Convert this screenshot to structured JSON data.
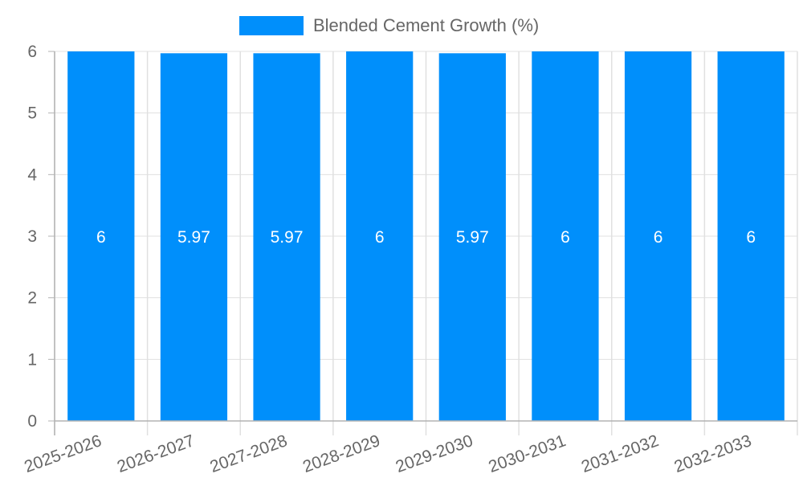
{
  "chart_data": {
    "type": "bar",
    "title": "",
    "categories": [
      "2025-2026",
      "2026-2027",
      "2027-2028",
      "2028-2029",
      "2029-2030",
      "2030-2031",
      "2031-2032",
      "2032-2033"
    ],
    "series": [
      {
        "name": "Blended Cement Growth (%)",
        "values": [
          6,
          5.97,
          5.97,
          6,
          5.97,
          6,
          6,
          6
        ],
        "color": "#008ffb"
      }
    ],
    "data_labels": [
      "6",
      "5.97",
      "5.97",
      "6",
      "5.97",
      "6",
      "6",
      "6"
    ],
    "xlabel": "",
    "ylabel": "",
    "ylim": [
      0,
      6
    ],
    "yticks": [
      0,
      1,
      2,
      3,
      4,
      5,
      6
    ],
    "grid": true,
    "legend_position": "top"
  },
  "legend": {
    "label": "Blended Cement Growth (%)",
    "color": "#008ffb"
  },
  "colors": {
    "bar": "#008ffb",
    "grid": "#e0e0e0",
    "axis": "#b3b3b3",
    "tick_text": "#666666",
    "data_label": "#ffffff"
  }
}
